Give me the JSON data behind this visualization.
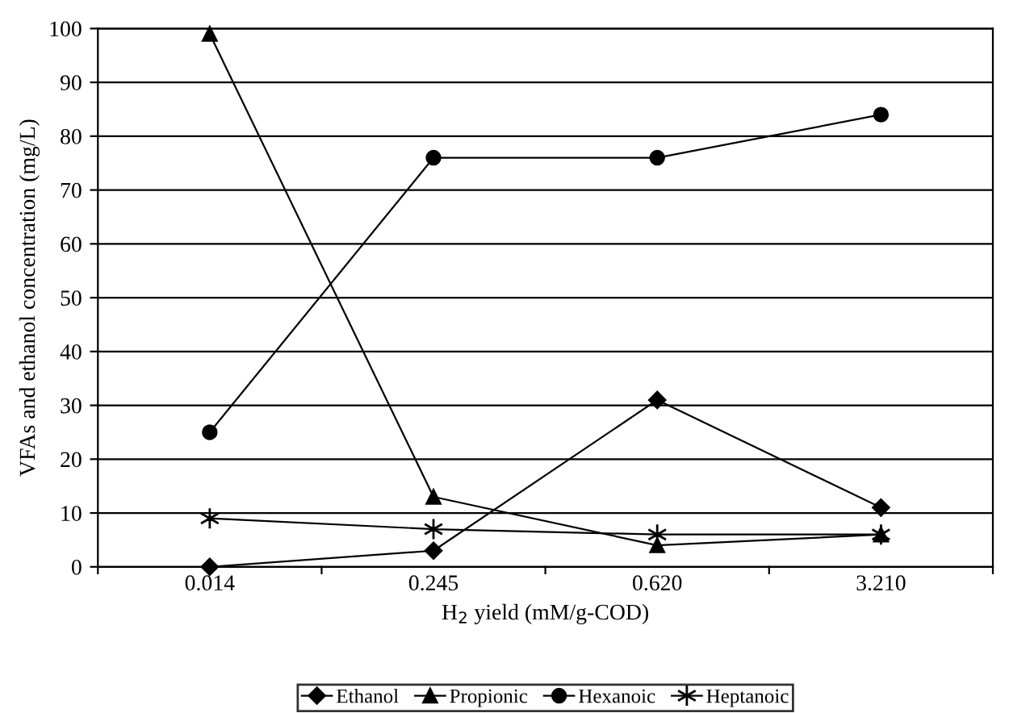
{
  "chart_data": {
    "type": "line",
    "xlabel": "H$_{2}$ yield (mM/g-COD)",
    "ylabel": "VFAs and ethanol concentration (mg/L)",
    "categories": [
      "0.014",
      "0.245",
      "0.620",
      "3.210"
    ],
    "series": [
      {
        "name": "Ethanol",
        "color": "#000000",
        "marker": "diamond",
        "values": [
          0,
          3,
          31,
          11
        ]
      },
      {
        "name": "Propionic",
        "color": "#000000",
        "marker": "triangle",
        "values": [
          99,
          13,
          4,
          6
        ]
      },
      {
        "name": "Hexanoic",
        "color": "#000000",
        "marker": "circle",
        "values": [
          25,
          76,
          76,
          84
        ]
      },
      {
        "name": "Heptanoic",
        "color": "#000000",
        "marker": "cross",
        "values": [
          9,
          7,
          6,
          6
        ]
      }
    ],
    "ylim": [
      0,
      100
    ],
    "yticks": [
      0,
      10,
      20,
      30,
      40,
      50,
      60,
      70,
      80,
      90,
      100
    ],
    "grid": "y",
    "legend": "bottom",
    "line_style": "solid"
  }
}
